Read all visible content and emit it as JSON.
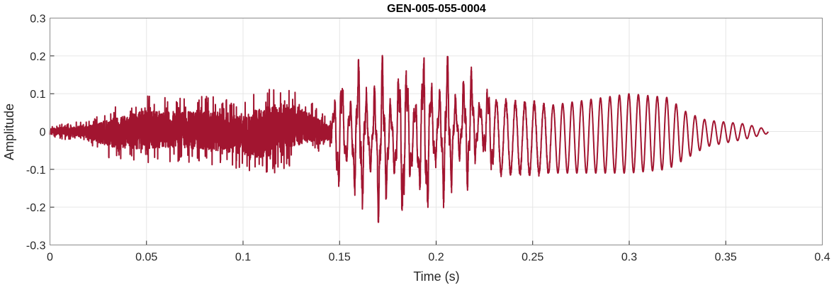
{
  "chart_data": {
    "type": "line",
    "title": "GEN-005-055-0004",
    "xlabel": "Time (s)",
    "ylabel": "Amplitude",
    "xlim": [
      0,
      0.4
    ],
    "ylim": [
      -0.3,
      0.3
    ],
    "xticks": [
      "0",
      "0.05",
      "0.1",
      "0.15",
      "0.2",
      "0.25",
      "0.3",
      "0.35",
      "0.4"
    ],
    "yticks": [
      "-0.3",
      "-0.2",
      "-0.1",
      "0",
      "0.1",
      "0.2",
      "0.3"
    ],
    "grid": true,
    "legend": "none",
    "line_color": "#A21530",
    "series": [
      {
        "envelope": {
          "t": [
            0,
            0.02,
            0.03,
            0.05,
            0.06,
            0.08,
            0.1,
            0.11,
            0.125,
            0.14,
            0.145,
            0.15,
            0.17,
            0.2,
            0.225,
            0.23,
            0.26,
            0.3,
            0.32,
            0.33,
            0.34,
            0.36,
            0.372
          ],
          "upper": [
            0.015,
            0.03,
            0.06,
            0.1,
            0.09,
            0.1,
            0.08,
            0.12,
            0.12,
            0.06,
            0.03,
            0.18,
            0.2,
            0.21,
            0.16,
            0.08,
            0.07,
            0.1,
            0.09,
            0.05,
            0.03,
            0.02,
            0.005
          ],
          "lower": [
            -0.015,
            -0.03,
            -0.07,
            -0.09,
            -0.08,
            -0.09,
            -0.1,
            -0.13,
            -0.09,
            -0.05,
            -0.04,
            -0.18,
            -0.24,
            -0.22,
            -0.12,
            -0.11,
            -0.11,
            -0.11,
            -0.1,
            -0.07,
            -0.04,
            -0.02,
            -0.005
          ]
        }
      }
    ]
  }
}
